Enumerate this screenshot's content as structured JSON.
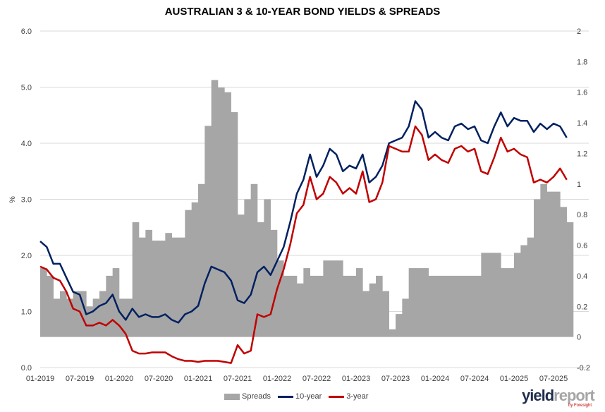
{
  "chart_data": {
    "type": "bar+line",
    "title": "AUSTRALIAN 3 & 10-YEAR BOND YIELDS & SPREADS",
    "ylabel": "%",
    "ylim": [
      0,
      6
    ],
    "y2lim": [
      -0.2,
      2
    ],
    "yticks": [
      "0.0",
      "1.0",
      "2.0",
      "3.0",
      "4.0",
      "5.0",
      "6.0"
    ],
    "y2ticks": [
      "-0.2",
      "0",
      "0.2",
      "0.4",
      "0.6",
      "0.8",
      "1",
      "1.2",
      "1.4",
      "1.6",
      "1.8",
      "2"
    ],
    "xticks": [
      "01-2019",
      "07-2019",
      "01-2020",
      "07-2020",
      "01-2021",
      "07-2021",
      "01-2022",
      "07-2022",
      "01-2023",
      "07-2023",
      "01-2024",
      "07-2024",
      "01-2025",
      "07-2025"
    ],
    "x_start": "01-2019",
    "x_frequency": "monthly",
    "grid": true,
    "legend_position": "bottom",
    "colors": {
      "spreads": "#A6A6A6",
      "ten_year": "#002060",
      "three_year": "#C00000"
    },
    "series": [
      {
        "name": "Spreads",
        "axis": "right",
        "kind": "bar",
        "values": [
          0.45,
          0.4,
          0.25,
          0.3,
          0.25,
          0.3,
          0.3,
          0.2,
          0.25,
          0.3,
          0.4,
          0.45,
          0.25,
          0.25,
          0.75,
          0.65,
          0.7,
          0.63,
          0.63,
          0.68,
          0.65,
          0.65,
          0.83,
          0.88,
          1.0,
          1.38,
          1.68,
          1.63,
          1.6,
          1.47,
          0.8,
          0.9,
          1.0,
          0.75,
          0.9,
          0.7,
          0.5,
          0.4,
          0.4,
          0.35,
          0.45,
          0.4,
          0.4,
          0.5,
          0.5,
          0.5,
          0.4,
          0.4,
          0.45,
          0.3,
          0.35,
          0.4,
          0.3,
          0.05,
          0.15,
          0.25,
          0.45,
          0.45,
          0.45,
          0.4,
          0.4,
          0.4,
          0.4,
          0.4,
          0.4,
          0.4,
          0.4,
          0.55,
          0.55,
          0.55,
          0.45,
          0.45,
          0.55,
          0.6,
          0.65,
          0.9,
          1.0,
          0.95,
          0.95,
          0.85,
          0.75
        ]
      },
      {
        "name": "10-year",
        "axis": "left",
        "kind": "line",
        "values": [
          2.25,
          2.15,
          1.85,
          1.85,
          1.6,
          1.35,
          1.3,
          0.95,
          1.0,
          1.1,
          1.15,
          1.3,
          1.0,
          0.85,
          1.05,
          0.9,
          0.95,
          0.9,
          0.9,
          0.95,
          0.85,
          0.8,
          0.95,
          1.0,
          1.1,
          1.5,
          1.8,
          1.75,
          1.7,
          1.55,
          1.2,
          1.15,
          1.3,
          1.7,
          1.8,
          1.65,
          1.9,
          2.15,
          2.6,
          3.1,
          3.35,
          3.8,
          3.4,
          3.6,
          3.9,
          3.8,
          3.5,
          3.6,
          3.55,
          3.8,
          3.3,
          3.4,
          3.6,
          4.0,
          4.05,
          4.1,
          4.3,
          4.75,
          4.6,
          4.1,
          4.2,
          4.1,
          4.05,
          4.3,
          4.35,
          4.25,
          4.3,
          4.05,
          4.0,
          4.3,
          4.55,
          4.3,
          4.45,
          4.4,
          4.4,
          4.2,
          4.35,
          4.25,
          4.35,
          4.3,
          4.1
        ]
      },
      {
        "name": "3-year",
        "axis": "left",
        "kind": "line",
        "values": [
          1.8,
          1.75,
          1.6,
          1.55,
          1.35,
          1.05,
          1.0,
          0.75,
          0.75,
          0.8,
          0.75,
          0.85,
          0.75,
          0.6,
          0.3,
          0.25,
          0.25,
          0.27,
          0.27,
          0.27,
          0.2,
          0.15,
          0.12,
          0.12,
          0.1,
          0.12,
          0.12,
          0.12,
          0.1,
          0.08,
          0.4,
          0.25,
          0.3,
          0.95,
          0.9,
          0.95,
          1.4,
          1.75,
          2.2,
          2.75,
          2.9,
          3.4,
          3.0,
          3.1,
          3.4,
          3.3,
          3.1,
          3.2,
          3.1,
          3.5,
          2.95,
          3.0,
          3.3,
          3.95,
          3.9,
          3.85,
          3.85,
          4.3,
          4.15,
          3.7,
          3.8,
          3.7,
          3.65,
          3.9,
          3.95,
          3.85,
          3.9,
          3.5,
          3.45,
          3.75,
          4.1,
          3.85,
          3.9,
          3.8,
          3.75,
          3.3,
          3.35,
          3.3,
          3.4,
          3.55,
          3.35
        ]
      }
    ]
  },
  "legend": {
    "spreads": "Spreads",
    "ten_year": "10-year",
    "three_year": "3-year"
  },
  "logo": {
    "part1": "yield",
    "part2": "report",
    "tagline": "by Foresight"
  }
}
